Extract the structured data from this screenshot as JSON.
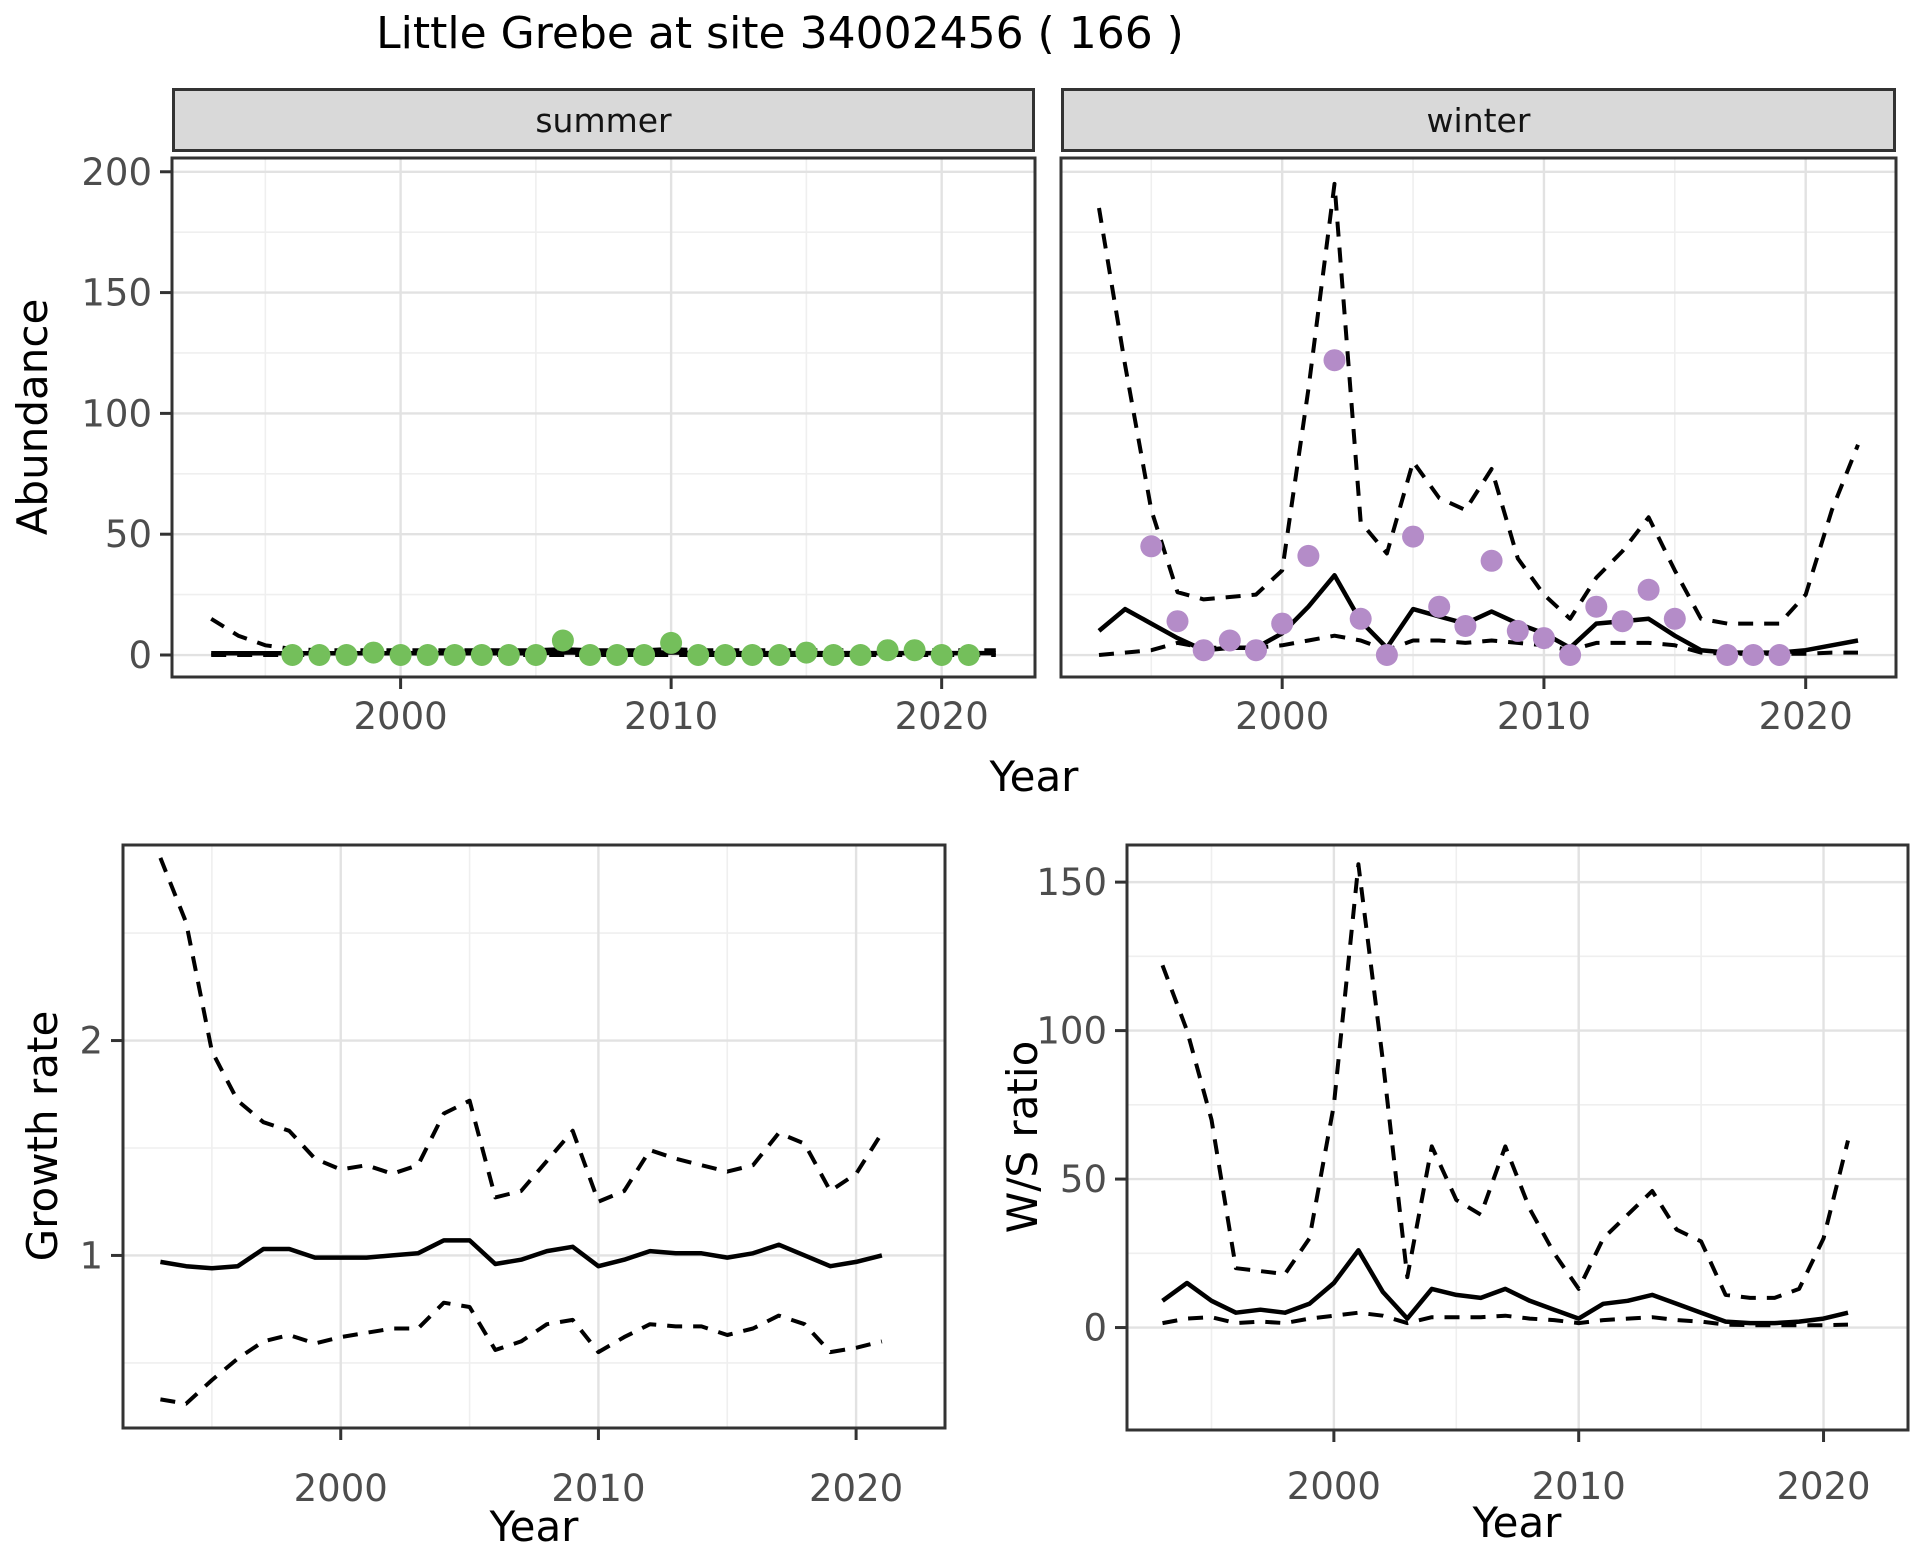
{
  "title": "Little Grebe at site 34002456 ( 166 )",
  "facets": {
    "summer_label": "summer",
    "winter_label": "winter"
  },
  "axes": {
    "abundance_label": "Abundance",
    "year_label": "Year",
    "growth_label": "Growth rate",
    "ws_label": "W/S ratio"
  },
  "colors": {
    "summer_points": "#74bf5b",
    "winter_points": "#b48cc8",
    "line": "#000000",
    "strip_bg": "#d9d9d9",
    "grid_major": "#e2e2e2",
    "grid_minor": "#efefef",
    "tick_text": "#4d4d4d",
    "panel_border": "#333333"
  },
  "chart_data": [
    {
      "id": "abundance-summer",
      "type": "line+scatter",
      "facet": "summer",
      "title": "Little Grebe at site 34002456 ( 166 )",
      "xlabel": "Year",
      "ylabel": "Abundance",
      "xlim": [
        1991.55,
        2023.45
      ],
      "ylim": [
        -9.1,
        205.7
      ],
      "xticks": [
        2000,
        2010,
        2020
      ],
      "xminor": [
        1995,
        2005,
        2015
      ],
      "yticks": [
        0,
        50,
        100,
        150,
        200
      ],
      "yminor": [
        25,
        75,
        125,
        175
      ],
      "show_yticklabels": true,
      "series": [
        {
          "name": "model-fit",
          "style": "solid",
          "x": [
            1993,
            1994,
            1995,
            1996,
            1997,
            1998,
            1999,
            2000,
            2001,
            2002,
            2003,
            2004,
            2005,
            2006,
            2007,
            2008,
            2009,
            2010,
            2011,
            2012,
            2013,
            2014,
            2015,
            2016,
            2017,
            2018,
            2019,
            2020,
            2021,
            2022
          ],
          "y": [
            0.7,
            0.7,
            0.7,
            0.7,
            0.7,
            0.7,
            0.7,
            0.7,
            0.7,
            0.7,
            0.7,
            0.7,
            0.7,
            1.1,
            0.9,
            0.8,
            0.9,
            1.1,
            0.8,
            0.8,
            0.8,
            0.8,
            0.8,
            0.8,
            0.8,
            0.8,
            0.8,
            0.8,
            0.8,
            0.8
          ]
        },
        {
          "name": "upper-ci",
          "style": "dashed",
          "x": [
            1993,
            1994,
            1995,
            1996,
            1997,
            1998,
            1999,
            2000,
            2001,
            2002,
            2003,
            2004,
            2005,
            2006,
            2007,
            2008,
            2009,
            2010,
            2011,
            2012,
            2013,
            2014,
            2015,
            2016,
            2017,
            2018,
            2019,
            2020,
            2021,
            2022
          ],
          "y": [
            15,
            8,
            4,
            2.5,
            2,
            2,
            2,
            2,
            2,
            2,
            2,
            2,
            2,
            2.5,
            2,
            2,
            2,
            2.5,
            2,
            2,
            2,
            2,
            2,
            2,
            2,
            2,
            2,
            2,
            2,
            2
          ]
        },
        {
          "name": "lower-ci",
          "style": "dashed",
          "x": [
            1993,
            1994,
            1995,
            1996,
            1997,
            1998,
            1999,
            2000,
            2001,
            2002,
            2003,
            2004,
            2005,
            2006,
            2007,
            2008,
            2009,
            2010,
            2011,
            2012,
            2013,
            2014,
            2015,
            2016,
            2017,
            2018,
            2019,
            2020,
            2021,
            2022
          ],
          "y": [
            0,
            0,
            0,
            0,
            0,
            0,
            0,
            0,
            0,
            0,
            0,
            0,
            0,
            0,
            0,
            0,
            0,
            0,
            0,
            0,
            0,
            0,
            0,
            0,
            0,
            0,
            0,
            0,
            0,
            0
          ]
        }
      ],
      "points": {
        "name": "observed-counts-summer",
        "color": "#74bf5b",
        "x": [
          1996,
          1997,
          1998,
          1999,
          2000,
          2001,
          2002,
          2003,
          2004,
          2005,
          2006,
          2007,
          2008,
          2009,
          2010,
          2011,
          2012,
          2013,
          2014,
          2015,
          2016,
          2017,
          2018,
          2019,
          2020,
          2021
        ],
        "y": [
          0,
          0,
          0,
          1,
          0,
          0,
          0,
          0,
          0,
          0,
          6,
          0,
          0,
          0,
          5,
          0,
          0,
          0,
          0,
          1,
          0,
          0,
          2,
          2,
          0,
          0
        ]
      }
    },
    {
      "id": "abundance-winter",
      "type": "line+scatter",
      "facet": "winter",
      "xlabel": "Year",
      "ylabel": "Abundance",
      "xlim": [
        1991.55,
        2023.45
      ],
      "ylim": [
        -9.1,
        205.7
      ],
      "xticks": [
        2000,
        2010,
        2020
      ],
      "xminor": [
        1995,
        2005,
        2015
      ],
      "yticks": [
        0,
        50,
        100,
        150,
        200
      ],
      "yminor": [
        25,
        75,
        125,
        175
      ],
      "show_yticklabels": false,
      "series": [
        {
          "name": "model-fit",
          "style": "solid",
          "x": [
            1993,
            1994,
            1995,
            1996,
            1997,
            1998,
            1999,
            2000,
            2001,
            2002,
            2003,
            2004,
            2005,
            2006,
            2007,
            2008,
            2009,
            2010,
            2011,
            2012,
            2013,
            2014,
            2015,
            2016,
            2017,
            2018,
            2019,
            2020,
            2021,
            2022
          ],
          "y": [
            10,
            19,
            13,
            7,
            2,
            3,
            3,
            9,
            20,
            33,
            14,
            3,
            19,
            16,
            13,
            18,
            13,
            9,
            3,
            13,
            14,
            15,
            8,
            2,
            1,
            1,
            1,
            2,
            4,
            6
          ]
        },
        {
          "name": "upper-ci",
          "style": "dashed",
          "x": [
            1993,
            1994,
            1995,
            1996,
            1997,
            1998,
            1999,
            2000,
            2001,
            2002,
            2003,
            2004,
            2005,
            2006,
            2007,
            2008,
            2009,
            2010,
            2011,
            2012,
            2013,
            2014,
            2015,
            2016,
            2017,
            2018,
            2019,
            2020,
            2021,
            2022
          ],
          "y": [
            185,
            120,
            60,
            26,
            23,
            24,
            25,
            35,
            110,
            195,
            55,
            42,
            80,
            65,
            60,
            77,
            40,
            25,
            15,
            32,
            43,
            57,
            35,
            15,
            13,
            13,
            13,
            25,
            60,
            87
          ]
        },
        {
          "name": "lower-ci",
          "style": "dashed",
          "x": [
            1993,
            1994,
            1995,
            1996,
            1997,
            1998,
            1999,
            2000,
            2001,
            2002,
            2003,
            2004,
            2005,
            2006,
            2007,
            2008,
            2009,
            2010,
            2011,
            2012,
            2013,
            2014,
            2015,
            2016,
            2017,
            2018,
            2019,
            2020,
            2021,
            2022
          ],
          "y": [
            0,
            1,
            2,
            5,
            3,
            3,
            3,
            4,
            6,
            8,
            6,
            2,
            6,
            6,
            5,
            6,
            5,
            4,
            2,
            5,
            5,
            5,
            4,
            1,
            0.5,
            0.5,
            0.5,
            0.5,
            1,
            1
          ]
        }
      ],
      "points": {
        "name": "observed-counts-winter",
        "color": "#b48cc8",
        "x": [
          1995,
          1996,
          1997,
          1998,
          1999,
          2000,
          2001,
          2002,
          2003,
          2004,
          2005,
          2006,
          2007,
          2008,
          2009,
          2010,
          2011,
          2012,
          2013,
          2014,
          2015,
          2017,
          2018,
          2019
        ],
        "y": [
          45,
          14,
          2,
          6,
          2,
          13,
          41,
          122,
          15,
          0,
          49,
          20,
          12,
          39,
          10,
          7,
          0,
          20,
          14,
          27,
          15,
          0,
          0,
          0
        ]
      }
    },
    {
      "id": "growth-rate",
      "type": "line",
      "xlabel": "Year",
      "ylabel": "Growth rate",
      "xlim": [
        1991.55,
        2023.45
      ],
      "ylim": [
        0.197,
        2.91
      ],
      "xticks": [
        2000,
        2010,
        2020
      ],
      "xminor": [
        1995,
        2005,
        2015
      ],
      "yticks": [
        1,
        2
      ],
      "yminor": [
        0.5,
        1.5,
        2.5
      ],
      "show_yticklabels": true,
      "series": [
        {
          "name": "model-fit",
          "style": "solid",
          "x": [
            1993,
            1994,
            1995,
            1996,
            1997,
            1998,
            1999,
            2000,
            2001,
            2002,
            2003,
            2004,
            2005,
            2006,
            2007,
            2008,
            2009,
            2010,
            2011,
            2012,
            2013,
            2014,
            2015,
            2016,
            2017,
            2018,
            2019,
            2020,
            2021
          ],
          "y": [
            0.97,
            0.95,
            0.94,
            0.95,
            1.03,
            1.03,
            0.99,
            0.99,
            0.99,
            1.0,
            1.01,
            1.07,
            1.07,
            0.96,
            0.98,
            1.02,
            1.04,
            0.95,
            0.98,
            1.02,
            1.01,
            1.01,
            0.99,
            1.01,
            1.05,
            1.0,
            0.95,
            0.97,
            1.0
          ]
        },
        {
          "name": "upper-ci",
          "style": "dashed",
          "x": [
            1993,
            1994,
            1995,
            1996,
            1997,
            1998,
            1999,
            2000,
            2001,
            2002,
            2003,
            2004,
            2005,
            2006,
            2007,
            2008,
            2009,
            2010,
            2011,
            2012,
            2013,
            2014,
            2015,
            2016,
            2017,
            2018,
            2019,
            2020,
            2021
          ],
          "y": [
            2.85,
            2.55,
            1.95,
            1.72,
            1.62,
            1.58,
            1.45,
            1.4,
            1.42,
            1.38,
            1.42,
            1.66,
            1.72,
            1.27,
            1.3,
            1.44,
            1.58,
            1.25,
            1.3,
            1.49,
            1.45,
            1.42,
            1.39,
            1.42,
            1.57,
            1.52,
            1.3,
            1.38,
            1.57
          ]
        },
        {
          "name": "lower-ci",
          "style": "dashed",
          "x": [
            1993,
            1994,
            1995,
            1996,
            1997,
            1998,
            1999,
            2000,
            2001,
            2002,
            2003,
            2004,
            2005,
            2006,
            2007,
            2008,
            2009,
            2010,
            2011,
            2012,
            2013,
            2014,
            2015,
            2016,
            2017,
            2018,
            2019,
            2020,
            2021
          ],
          "y": [
            0.33,
            0.31,
            0.42,
            0.52,
            0.6,
            0.63,
            0.59,
            0.62,
            0.64,
            0.66,
            0.66,
            0.78,
            0.76,
            0.56,
            0.6,
            0.68,
            0.7,
            0.55,
            0.62,
            0.68,
            0.67,
            0.67,
            0.63,
            0.66,
            0.72,
            0.68,
            0.55,
            0.57,
            0.6
          ]
        }
      ]
    },
    {
      "id": "ws-ratio",
      "type": "line",
      "xlabel": "Year",
      "ylabel": "W/S ratio",
      "xlim": [
        1991.55,
        2023.45
      ],
      "ylim": [
        -34.5,
        162.5
      ],
      "xticks": [
        2000,
        2010,
        2020
      ],
      "xminor": [
        1995,
        2005,
        2015
      ],
      "yticks": [
        0,
        50,
        100,
        150
      ],
      "yminor": [
        25,
        75,
        125
      ],
      "show_yticklabels": true,
      "series": [
        {
          "name": "model-fit",
          "style": "solid",
          "x": [
            1993,
            1994,
            1995,
            1996,
            1997,
            1998,
            1999,
            2000,
            2001,
            2002,
            2003,
            2004,
            2005,
            2006,
            2007,
            2008,
            2009,
            2010,
            2011,
            2012,
            2013,
            2014,
            2015,
            2016,
            2017,
            2018,
            2019,
            2020,
            2021
          ],
          "y": [
            9,
            15,
            9,
            5,
            6,
            5,
            8,
            15,
            26,
            12,
            3,
            13,
            11,
            10,
            13,
            9,
            6,
            3,
            8,
            9,
            11,
            8,
            5,
            2,
            1.5,
            1.5,
            2,
            3,
            5
          ]
        },
        {
          "name": "upper-ci",
          "style": "dashed",
          "x": [
            1993,
            1994,
            1995,
            1996,
            1997,
            1998,
            1999,
            2000,
            2001,
            2002,
            2003,
            2004,
            2005,
            2006,
            2007,
            2008,
            2009,
            2010,
            2011,
            2012,
            2013,
            2014,
            2015,
            2016,
            2017,
            2018,
            2019,
            2020,
            2021
          ],
          "y": [
            122,
            100,
            70,
            20,
            19,
            18,
            30,
            75,
            156,
            90,
            17,
            61,
            43,
            38,
            61,
            40,
            25,
            13,
            30,
            38,
            46,
            33,
            29,
            11,
            10,
            10,
            13,
            30,
            63
          ]
        },
        {
          "name": "lower-ci",
          "style": "dashed",
          "x": [
            1993,
            1994,
            1995,
            1996,
            1997,
            1998,
            1999,
            2000,
            2001,
            2002,
            2003,
            2004,
            2005,
            2006,
            2007,
            2008,
            2009,
            2010,
            2011,
            2012,
            2013,
            2014,
            2015,
            2016,
            2017,
            2018,
            2019,
            2020,
            2021
          ],
          "y": [
            1.5,
            3,
            3.5,
            1.5,
            2,
            1.5,
            3,
            4,
            5,
            4,
            1.5,
            3.5,
            3.5,
            3.5,
            4,
            3,
            2.5,
            1.5,
            2.5,
            3,
            3.5,
            2.5,
            2,
            1,
            0.8,
            0.8,
            0.8,
            0.8,
            1
          ]
        }
      ]
    }
  ]
}
